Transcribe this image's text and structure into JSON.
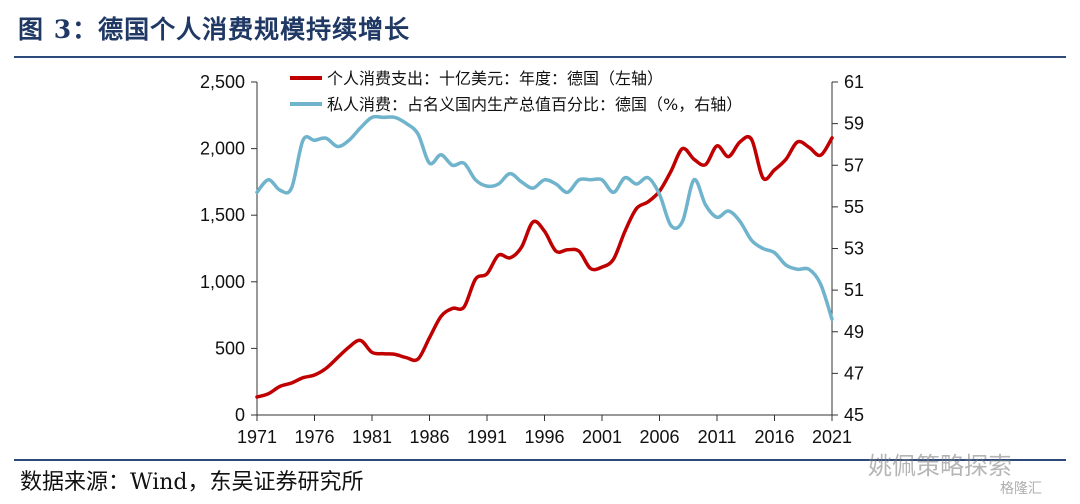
{
  "title": "图 3：德国个人消费规模持续增长",
  "source": "数据来源：Wind，东吴证券研究所",
  "watermark": "姚佩策略探索",
  "watermark_small": "格隆汇",
  "chart_data": {
    "type": "line",
    "x_start": 1971,
    "x_end": 2021,
    "x_ticks": [
      "1971",
      "1976",
      "1981",
      "1986",
      "1991",
      "1996",
      "2001",
      "2006",
      "2011",
      "2016",
      "2021"
    ],
    "y_left": {
      "ylim": [
        0,
        2500
      ],
      "ticks": [
        "0",
        "500",
        "1,000",
        "1,500",
        "2,000",
        "2,500"
      ]
    },
    "y_right": {
      "ylim": [
        45,
        61
      ],
      "ticks": [
        "45",
        "47",
        "49",
        "51",
        "53",
        "55",
        "57",
        "59",
        "61"
      ]
    },
    "grid": false,
    "legend_position": "top",
    "series": [
      {
        "name": "个人消费支出：十亿美元：年度：德国（左轴）",
        "axis": "left",
        "color": "#c00000",
        "x": [
          1971,
          1972,
          1973,
          1974,
          1975,
          1976,
          1977,
          1978,
          1979,
          1980,
          1981,
          1982,
          1983,
          1984,
          1985,
          1986,
          1987,
          1988,
          1989,
          1990,
          1991,
          1992,
          1993,
          1994,
          1995,
          1996,
          1997,
          1998,
          1999,
          2000,
          2001,
          2002,
          2003,
          2004,
          2005,
          2006,
          2007,
          2008,
          2009,
          2010,
          2011,
          2012,
          2013,
          2014,
          2015,
          2016,
          2017,
          2018,
          2019,
          2020,
          2021
        ],
        "values": [
          135,
          160,
          215,
          240,
          280,
          300,
          350,
          430,
          510,
          560,
          470,
          460,
          455,
          430,
          420,
          580,
          740,
          800,
          810,
          1020,
          1060,
          1200,
          1180,
          1260,
          1450,
          1380,
          1230,
          1240,
          1230,
          1100,
          1110,
          1170,
          1380,
          1550,
          1600,
          1680,
          1830,
          2000,
          1920,
          1880,
          2020,
          1940,
          2050,
          2070,
          1780,
          1840,
          1920,
          2050,
          2010,
          1950,
          2080
        ]
      },
      {
        "name": "私人消费：占名义国内生产总值百分比：德国（%，右轴）",
        "axis": "right",
        "color": "#6fb3cc",
        "x": [
          1971,
          1972,
          1973,
          1974,
          1975,
          1976,
          1977,
          1978,
          1979,
          1980,
          1981,
          1982,
          1983,
          1984,
          1985,
          1986,
          1987,
          1988,
          1989,
          1990,
          1991,
          1992,
          1993,
          1994,
          1995,
          1996,
          1997,
          1998,
          1999,
          2000,
          2001,
          2002,
          2003,
          2004,
          2005,
          2006,
          2007,
          2008,
          2009,
          2010,
          2011,
          2012,
          2013,
          2014,
          2015,
          2016,
          2017,
          2018,
          2019,
          2020,
          2021
        ],
        "values": [
          55.7,
          56.3,
          55.8,
          55.9,
          58.2,
          58.2,
          58.3,
          57.9,
          58.2,
          58.8,
          59.3,
          59.3,
          59.3,
          59.0,
          58.5,
          57.1,
          57.5,
          57.0,
          57.1,
          56.3,
          56.0,
          56.1,
          56.6,
          56.2,
          55.9,
          56.3,
          56.1,
          55.7,
          56.3,
          56.3,
          56.3,
          55.7,
          56.4,
          56.1,
          56.4,
          55.6,
          54.1,
          54.3,
          56.3,
          55.1,
          54.5,
          54.8,
          54.3,
          53.4,
          53.0,
          52.8,
          52.2,
          52.0,
          52.0,
          51.3,
          49.6
        ]
      }
    ]
  }
}
